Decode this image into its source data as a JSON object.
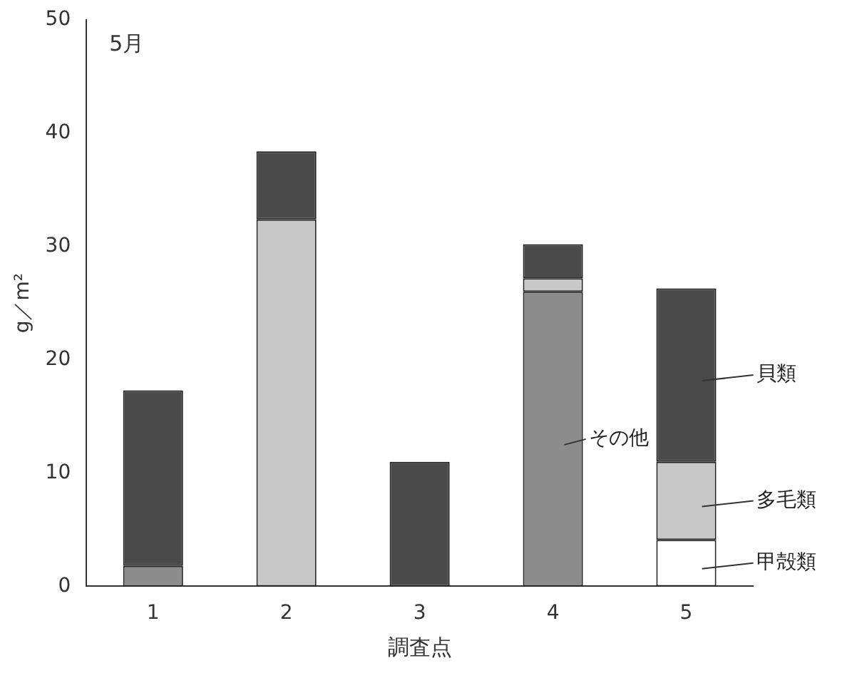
{
  "chart_data": {
    "type": "bar",
    "stacked": true,
    "xlabel": "調査点",
    "ylabel": "g／m²",
    "annotations": [
      "5月"
    ],
    "categories": [
      "1",
      "2",
      "3",
      "4",
      "5"
    ],
    "series": [
      {
        "name": "甲殻類",
        "color": "#ffffff",
        "values": [
          0,
          0,
          0,
          0,
          4.1
        ]
      },
      {
        "name": "その他",
        "color": "#8c8c8c",
        "values": [
          1.8,
          0,
          0,
          26,
          0
        ]
      },
      {
        "name": "多毛類",
        "color": "#c8c8c8",
        "values": [
          0,
          32.4,
          0,
          1.2,
          6.9
        ]
      },
      {
        "name": "貝類",
        "color": "#4a4a4a",
        "values": [
          15.5,
          6,
          11,
          3,
          15.3
        ]
      }
    ],
    "ylim": [
      0,
      50
    ],
    "yticks": [
      0,
      10,
      20,
      30,
      40,
      50
    ],
    "grid": false,
    "legend": false
  }
}
